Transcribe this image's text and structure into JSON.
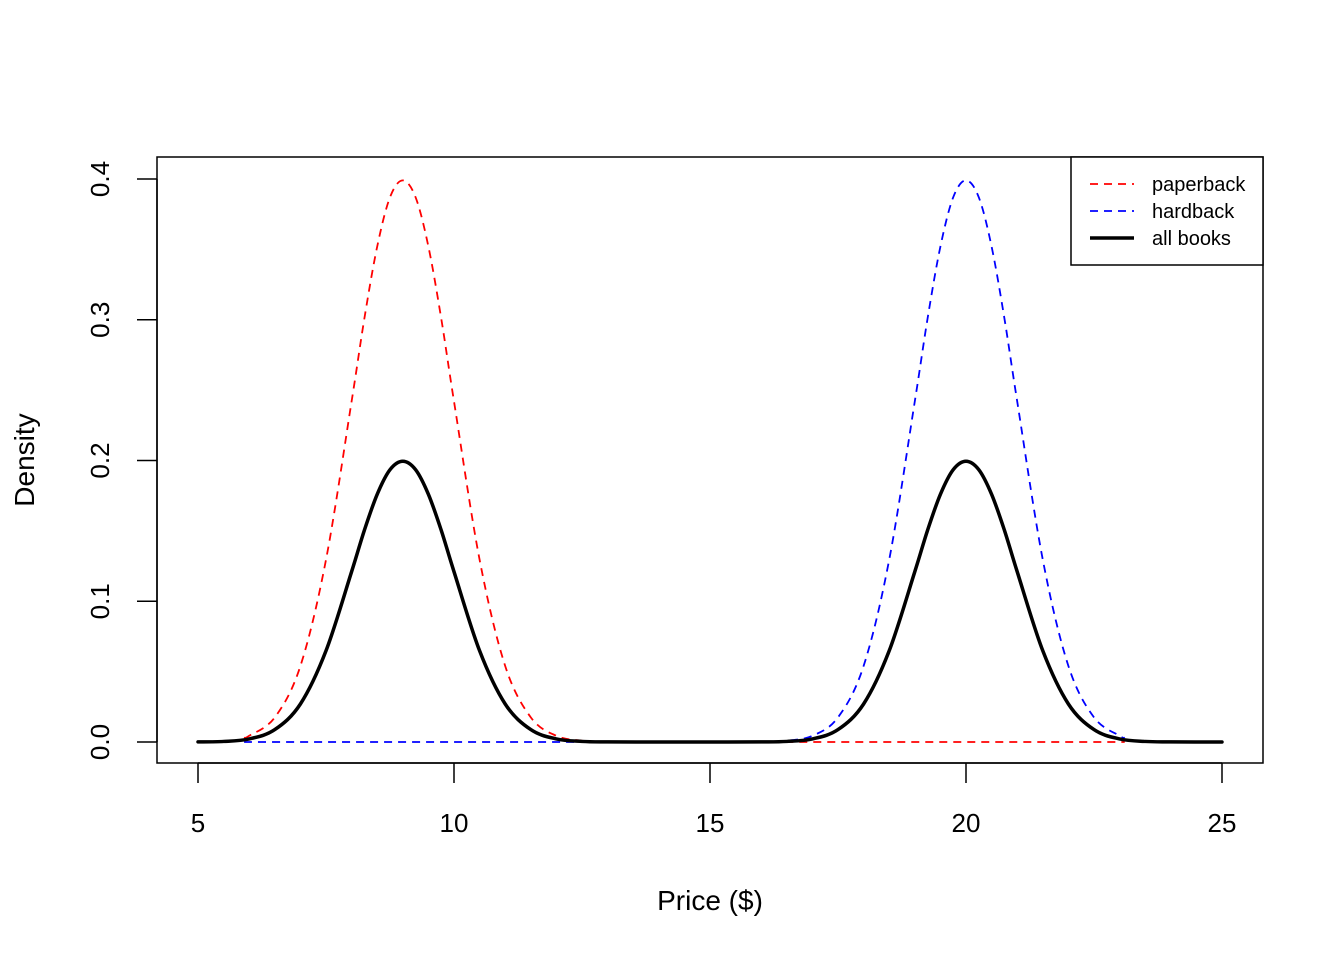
{
  "chart_data": {
    "type": "line",
    "title": "",
    "xlabel": "Price ($)",
    "ylabel": "Density",
    "xlim": [
      5,
      25
    ],
    "ylim": [
      0,
      0.4
    ],
    "x_ticks": [
      5,
      10,
      15,
      20,
      25
    ],
    "y_ticks": [
      0.0,
      0.1,
      0.2,
      0.3,
      0.4
    ],
    "x_tick_labels": [
      "5",
      "10",
      "15",
      "20",
      "25"
    ],
    "y_tick_labels": [
      "0.0",
      "0.1",
      "0.2",
      "0.3",
      "0.4"
    ],
    "grid": false,
    "legend_position": "top-right",
    "series": [
      {
        "name": "paperback",
        "color": "#ff0000",
        "line_style": "dashed",
        "x": [
          5.9,
          6,
          6.5,
          7,
          7.5,
          8,
          8.25,
          8.5,
          8.75,
          9,
          9.25,
          9.5,
          9.75,
          10,
          10.5,
          11,
          11.5,
          12,
          12.5,
          13,
          14,
          15,
          16,
          17,
          18,
          19,
          20,
          21,
          22,
          23.1
        ],
        "y": [
          0.003,
          0.0044,
          0.0175,
          0.054,
          0.1295,
          0.242,
          0.301,
          0.352,
          0.387,
          0.399,
          0.387,
          0.352,
          0.301,
          0.242,
          0.1295,
          0.054,
          0.0175,
          0.0044,
          0.0009,
          0.0001,
          0,
          0,
          0,
          0,
          0,
          0,
          0,
          0,
          0,
          0
        ]
      },
      {
        "name": "hardback",
        "color": "#0000ff",
        "line_style": "dashed",
        "x": [
          5.9,
          7,
          8,
          9,
          10,
          11,
          12,
          13,
          14,
          15,
          16,
          16.5,
          17,
          17.5,
          18,
          18.5,
          19,
          19.25,
          19.5,
          19.75,
          20,
          20.25,
          20.5,
          20.75,
          21,
          21.5,
          22,
          22.5,
          23,
          23.1
        ],
        "y": [
          0,
          0,
          0,
          0,
          0,
          0,
          0,
          0,
          0,
          0,
          0.0001,
          0.0009,
          0.0044,
          0.0175,
          0.054,
          0.1295,
          0.242,
          0.301,
          0.352,
          0.387,
          0.399,
          0.387,
          0.352,
          0.301,
          0.242,
          0.1295,
          0.054,
          0.0175,
          0.0044,
          0.003
        ]
      },
      {
        "name": "all books",
        "color": "#000000",
        "line_style": "solid",
        "x": [
          5,
          5.5,
          6,
          6.5,
          7,
          7.5,
          8,
          8.25,
          8.5,
          8.75,
          9,
          9.25,
          9.5,
          9.75,
          10,
          10.5,
          11,
          11.5,
          12,
          12.5,
          13,
          14,
          15,
          16,
          16.5,
          17,
          17.5,
          18,
          18.5,
          19,
          19.25,
          19.5,
          19.75,
          20,
          20.25,
          20.5,
          20.75,
          21,
          21.5,
          22,
          22.5,
          23,
          23.5,
          24,
          25
        ],
        "y": [
          0.0001,
          0.0004,
          0.0022,
          0.0088,
          0.027,
          0.0648,
          0.121,
          0.1505,
          0.176,
          0.1935,
          0.1995,
          0.1935,
          0.176,
          0.1505,
          0.121,
          0.0648,
          0.027,
          0.0088,
          0.0022,
          0.0004,
          5e-05,
          0,
          0,
          5e-05,
          0.0004,
          0.0022,
          0.0088,
          0.027,
          0.0648,
          0.121,
          0.1505,
          0.176,
          0.1935,
          0.1995,
          0.1935,
          0.176,
          0.1505,
          0.121,
          0.0648,
          0.027,
          0.0088,
          0.0022,
          0.0004,
          0.0001,
          0
        ]
      }
    ]
  }
}
